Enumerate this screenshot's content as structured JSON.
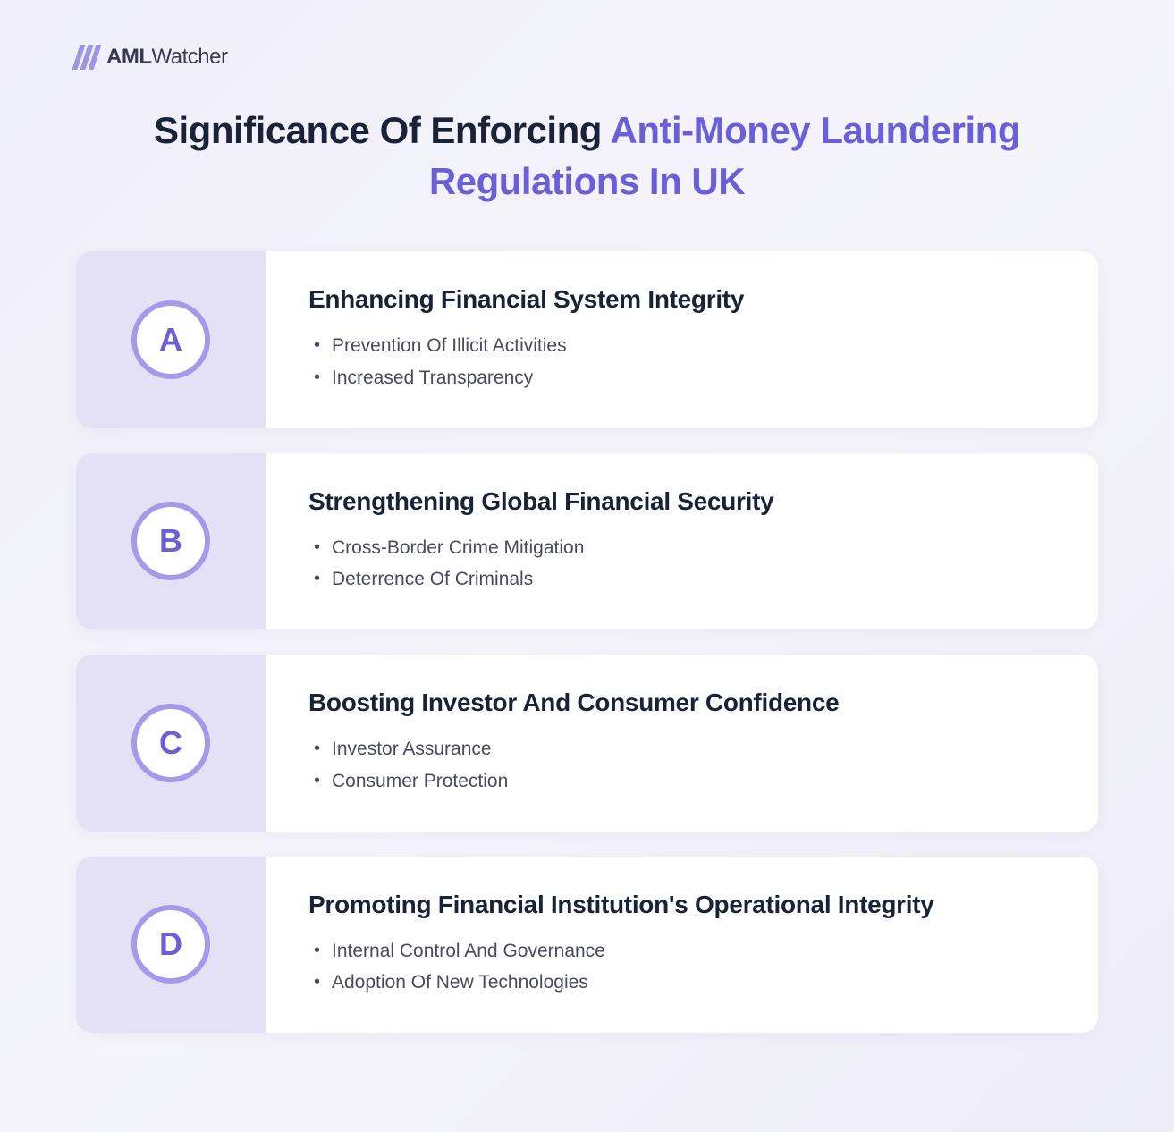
{
  "logo": {
    "brand_bold": "AML",
    "brand_light": "Watcher"
  },
  "title": {
    "part1": "Significance Of Enforcing ",
    "highlight": "Anti-Money Laundering Regulations In UK"
  },
  "colors": {
    "background_gradient_start": "#f0effa",
    "background_gradient_end": "#eeedf8",
    "title_color": "#1a2238",
    "highlight_color": "#6b5fd8",
    "badge_bg": "#e4e1f6",
    "badge_border": "#a59ae8",
    "badge_text": "#6b5fd8",
    "card_bg": "#ffffff",
    "heading_color": "#1a2238",
    "body_text": "#4a4a5e"
  },
  "typography": {
    "title_fontsize": 42,
    "heading_fontsize": 28,
    "body_fontsize": 21,
    "badge_fontsize": 36
  },
  "cards": [
    {
      "letter": "A",
      "heading": "Enhancing Financial System Integrity",
      "items": [
        "Prevention Of Illicit Activities",
        "Increased Transparency"
      ]
    },
    {
      "letter": "B",
      "heading": "Strengthening Global Financial Security",
      "items": [
        "Cross-Border Crime Mitigation",
        "Deterrence Of Criminals"
      ]
    },
    {
      "letter": "C",
      "heading": "Boosting Investor And Consumer Confidence",
      "items": [
        "Investor Assurance",
        "Consumer Protection"
      ]
    },
    {
      "letter": "D",
      "heading": "Promoting Financial Institution's Operational Integrity",
      "items": [
        "Internal Control And Governance",
        "Adoption Of New Technologies"
      ]
    }
  ]
}
